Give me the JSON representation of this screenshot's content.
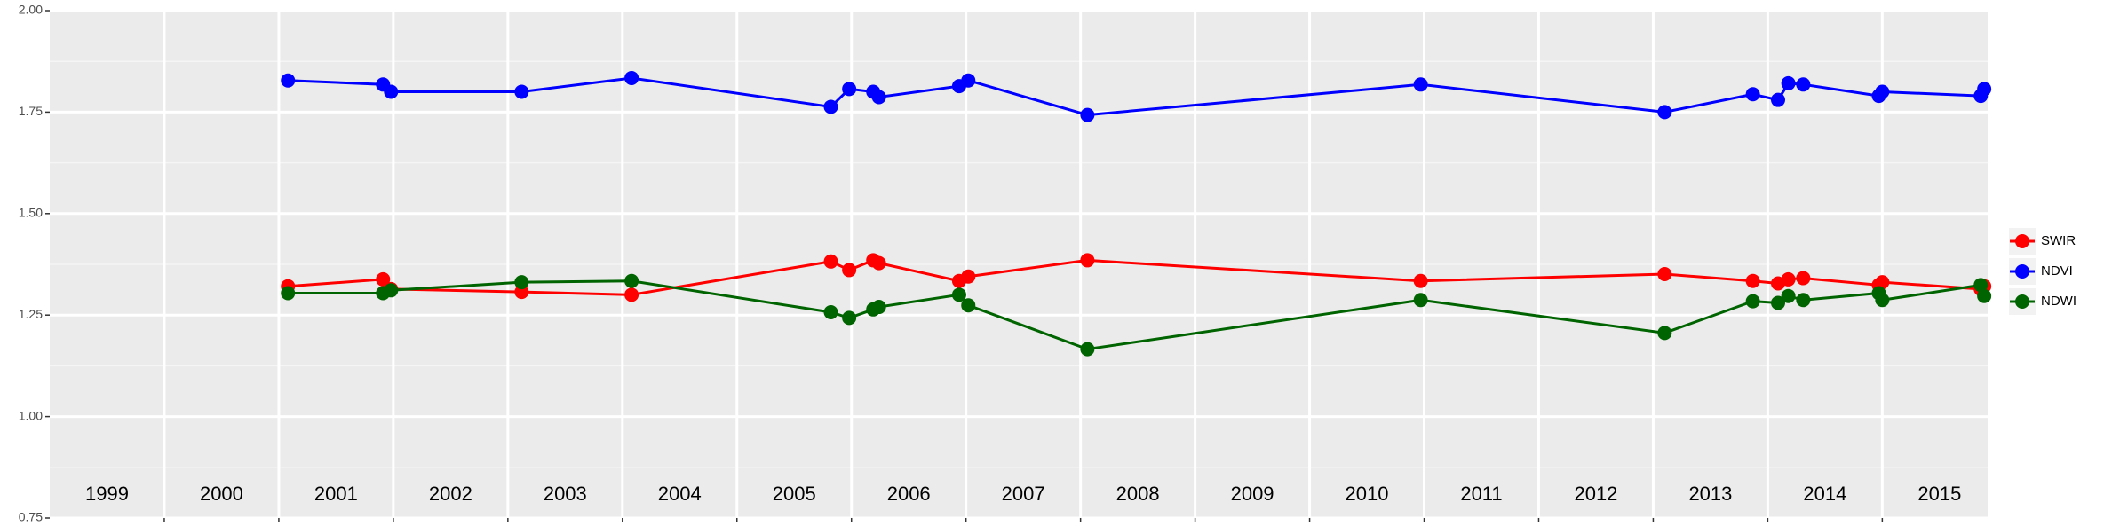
{
  "chart_data": {
    "type": "line",
    "categories": [
      "1999",
      "2000",
      "2001",
      "2002",
      "2003",
      "2004",
      "2005",
      "2006",
      "2007",
      "2008",
      "2009",
      "2010",
      "2011",
      "2012",
      "2013",
      "2014",
      "2015"
    ],
    "x": [
      2001.08,
      2001.91,
      2001.98,
      2003.12,
      2004.08,
      2005.82,
      2005.98,
      2006.19,
      2006.24,
      2006.94,
      2007.02,
      2008.06,
      2010.97,
      2013.1,
      2013.87,
      2014.09,
      2014.18,
      2014.31,
      2014.97,
      2015.0,
      2015.86,
      2015.89
    ],
    "series": [
      {
        "name": "SWIR",
        "color": "#ff0000",
        "values": [
          1.321,
          1.338,
          1.314,
          1.307,
          1.3,
          1.382,
          1.361,
          1.385,
          1.378,
          1.334,
          1.345,
          1.385,
          1.334,
          1.351,
          1.334,
          1.328,
          1.338,
          1.341,
          1.324,
          1.331,
          1.314,
          1.321
        ]
      },
      {
        "name": "NDVI",
        "color": "#0000ff",
        "values": [
          1.828,
          1.818,
          1.8,
          1.8,
          1.834,
          1.763,
          1.807,
          1.8,
          1.787,
          1.814,
          1.828,
          1.743,
          1.818,
          1.75,
          1.794,
          1.78,
          1.821,
          1.818,
          1.79,
          1.8,
          1.79,
          1.807
        ]
      },
      {
        "name": "NDWI",
        "color": "#006400",
        "values": [
          1.304,
          1.304,
          1.311,
          1.331,
          1.334,
          1.257,
          1.243,
          1.264,
          1.27,
          1.3,
          1.274,
          1.166,
          1.287,
          1.206,
          1.284,
          1.28,
          1.297,
          1.287,
          1.304,
          1.287,
          1.324,
          1.297
        ]
      }
    ],
    "xlim": [
      1999,
      2015.92
    ],
    "xticks": [
      2000,
      2001,
      2002,
      2003,
      2004,
      2005,
      2006,
      2007,
      2008,
      2009,
      2010,
      2011,
      2012,
      2013,
      2014,
      2015
    ],
    "ylim": [
      0.75,
      2.0
    ],
    "yticks": [
      {
        "value": 0.75,
        "label": "0.75"
      },
      {
        "value": 1.0,
        "label": "1.00"
      },
      {
        "value": 1.25,
        "label": "1.25"
      },
      {
        "value": 1.5,
        "label": "1.50"
      },
      {
        "value": 1.75,
        "label": "1.75"
      },
      {
        "value": 2.0,
        "label": "2.00"
      }
    ],
    "grid": true
  }
}
